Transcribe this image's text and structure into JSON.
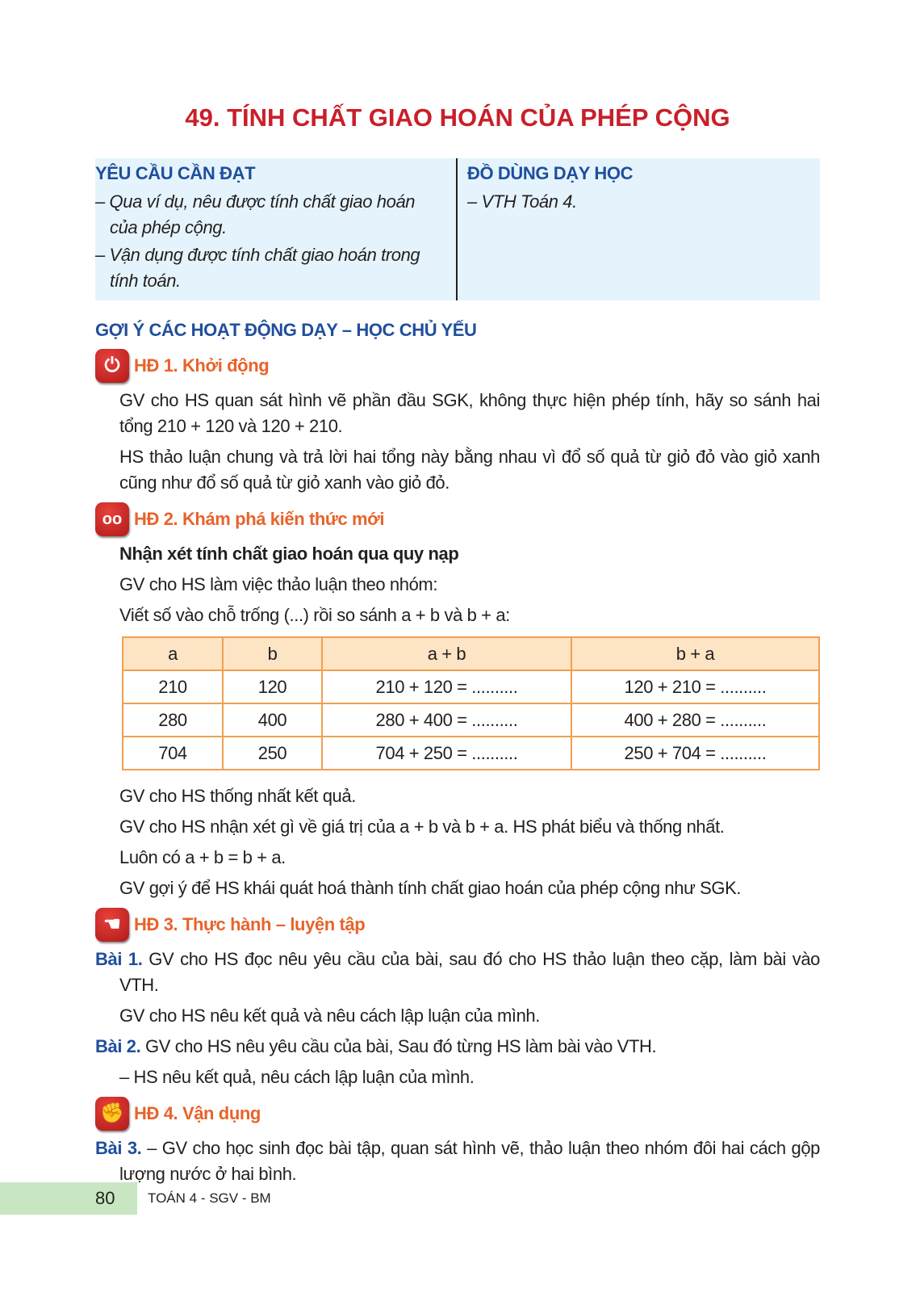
{
  "title": "49. TÍNH CHẤT GIAO HOÁN CỦA PHÉP CỘNG",
  "box": {
    "left_heading": "YÊU CẦU CẦN ĐẠT",
    "left_items": [
      "– Qua ví dụ, nêu được tính chất giao hoán của phép cộng.",
      "– Vận dụng được tính chất giao hoán trong tính toán."
    ],
    "right_heading": "ĐỒ DÙNG DẠY HỌC",
    "right_items": [
      "– VTH Toán 4."
    ]
  },
  "section_heading": "GỢI Ý CÁC HOẠT ĐỘNG DẠY – HỌC CHỦ YẾU",
  "hd1": {
    "title": "HĐ 1. Khởi động",
    "icon": "power-icon",
    "p1": "GV cho HS quan sát hình vẽ phần đầu SGK, không thực hiện phép tính, hãy so sánh hai tổng 210 + 120 và 120 + 210.",
    "p2": "HS thảo luận chung và trả lời hai tổng này bằng nhau vì đổ số quả từ giỏ đỏ vào giỏ xanh cũng như đổ số quả từ giỏ xanh vào giỏ đỏ."
  },
  "hd2": {
    "title": "HĐ 2. Khám phá kiến thức mới",
    "icon": "binoculars-icon",
    "subtitle": "Nhận xét tính chất giao hoán qua quy nạp",
    "p1": "GV cho HS làm việc thảo luận theo nhóm:",
    "p2": "Viết số vào chỗ trống (...) rồi so sánh a + b và b + a:",
    "table": {
      "headers": [
        "a",
        "b",
        "a + b",
        "b + a"
      ],
      "rows": [
        [
          "210",
          "120",
          "210 + 120 = ..........",
          "120 + 210 = .........."
        ],
        [
          "280",
          "400",
          "280 + 400 = ..........",
          "400 + 280 = .........."
        ],
        [
          "704",
          "250",
          "704 + 250 = ..........",
          "250 + 704 = .........."
        ]
      ]
    },
    "p3": "GV cho HS thống nhất kết quả.",
    "p4": "GV cho HS nhận xét gì về giá trị của a + b và b + a. HS phát biểu và thống nhất.",
    "p5": "Luôn có a + b = b + a.",
    "p6": "GV gợi ý để HS khái quát hoá thành tính chất giao hoán của phép cộng như SGK."
  },
  "hd3": {
    "title": "HĐ 3. Thực hành – luyện tập",
    "icon": "hands-icon",
    "bai1_label": "Bài 1.",
    "bai1": " GV cho HS đọc nêu yêu cầu của bài, sau đó cho HS thảo luận theo cặp, làm bài vào VTH.",
    "bai1_b": "GV cho HS nêu kết quả và nêu cách lập luận của mình.",
    "bai2_label": "Bài 2.",
    "bai2": " GV cho HS nêu yêu cầu của bài, Sau đó từng HS làm bài vào VTH.",
    "bai2_b": "– HS nêu kết quả, nêu cách lập luận của mình."
  },
  "hd4": {
    "title": "HĐ 4. Vận dụng",
    "icon": "fist-icon",
    "bai3_label": "Bài 3.",
    "bai3": " – GV cho học sinh đọc bài tập, quan sát hình vẽ, thảo luận theo nhóm đôi hai cách gộp lượng nước ở hai bình."
  },
  "footer": {
    "page": "80",
    "book": "TOÁN 4 - SGV - BM"
  }
}
